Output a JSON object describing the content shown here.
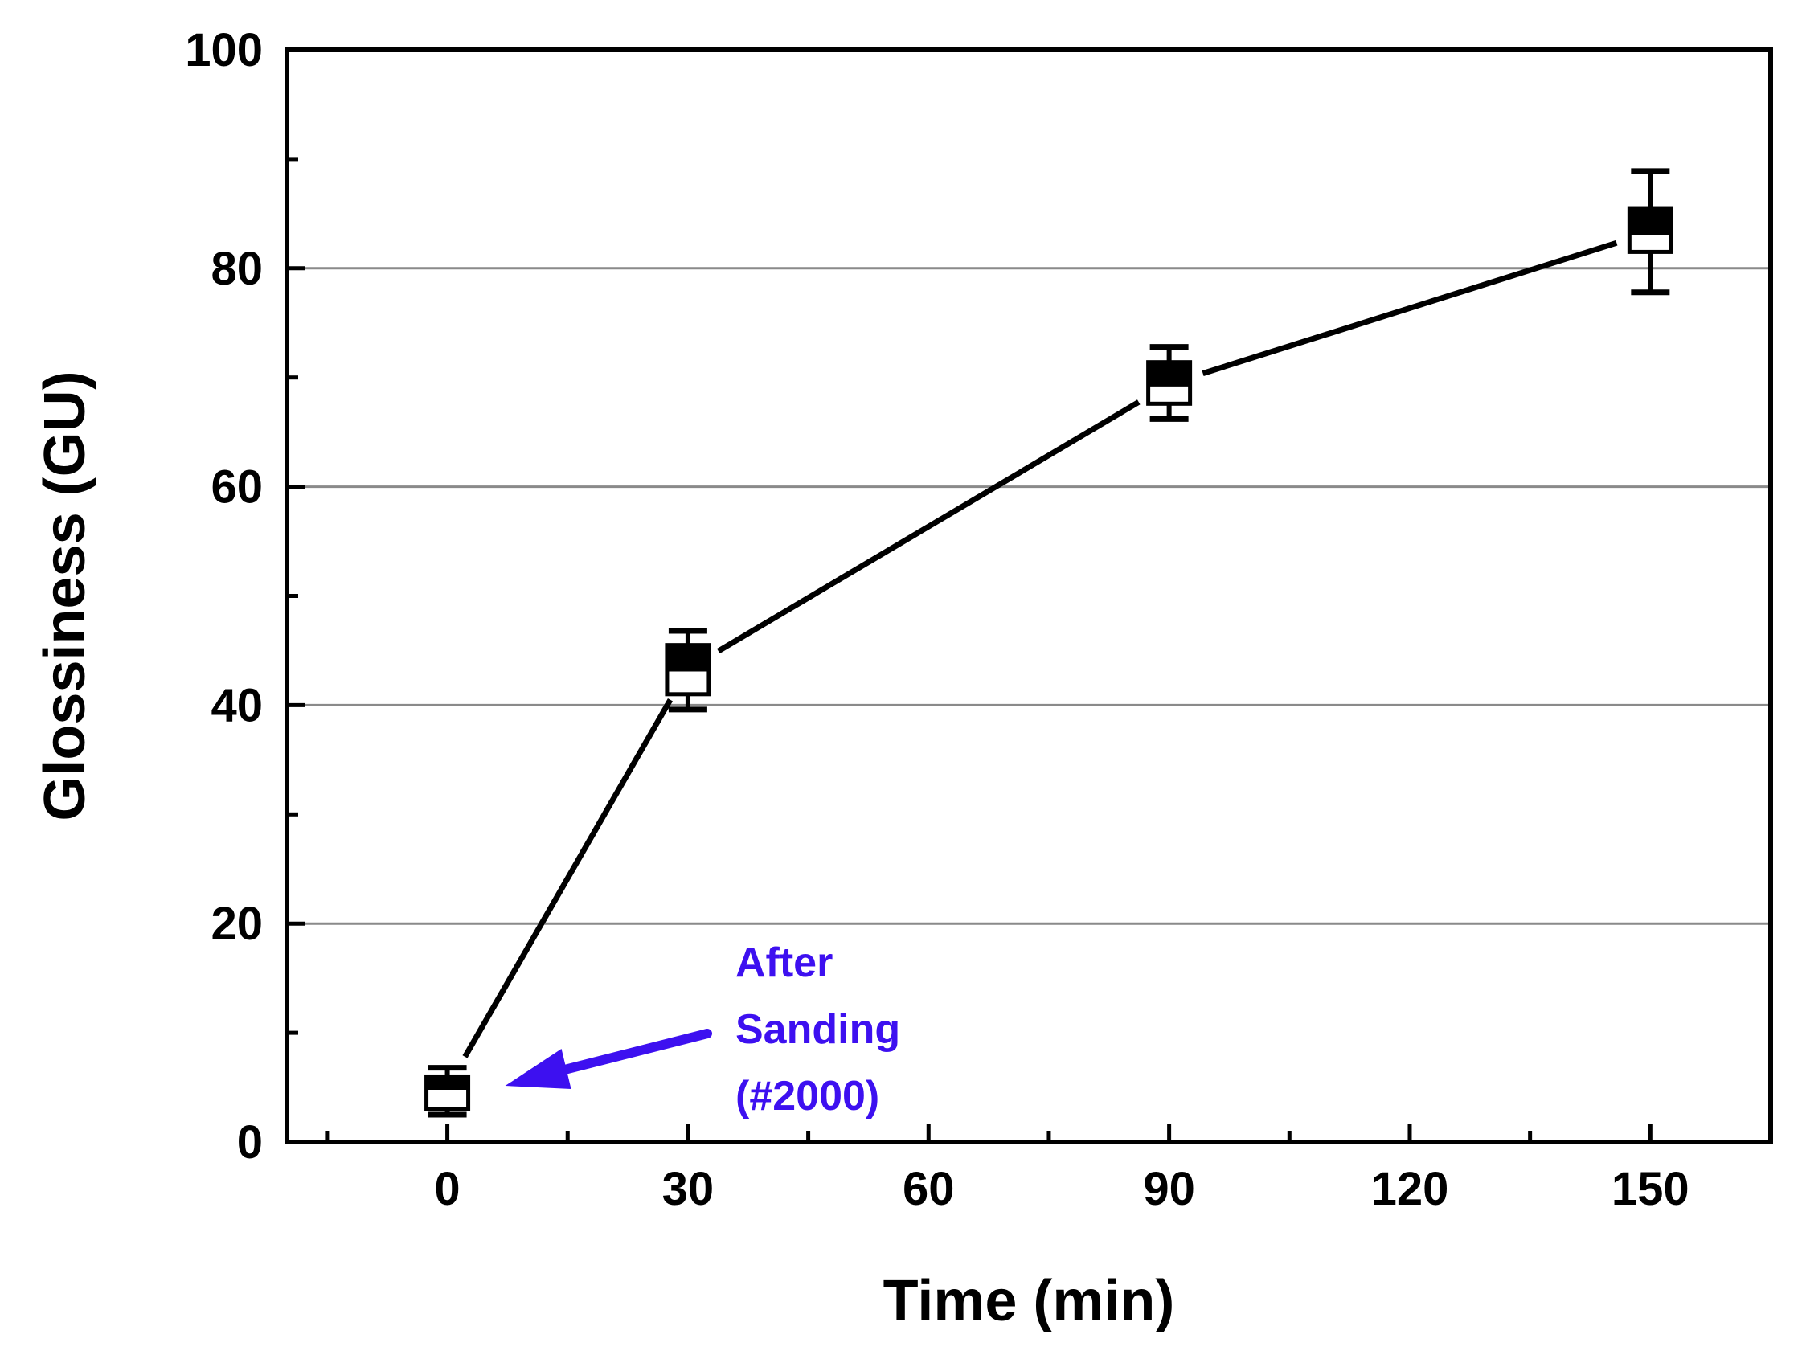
{
  "chart_data": {
    "type": "line",
    "title": "",
    "xlabel": "Time (min)",
    "ylabel": "Glossiness (GU)",
    "xlim": [
      -20,
      165
    ],
    "ylim": [
      0,
      100
    ],
    "x_ticks": [
      0,
      30,
      60,
      90,
      120,
      150
    ],
    "x_tick_labels": [
      "0",
      "30",
      "60",
      "90",
      "120",
      "150"
    ],
    "y_ticks": [
      0,
      20,
      40,
      60,
      80,
      100
    ],
    "y_tick_labels": [
      "0",
      "20",
      "40",
      "60",
      "80",
      "100"
    ],
    "grid": "horizontal",
    "series": [
      {
        "name": "Glossiness",
        "x": [
          0,
          30,
          90,
          150
        ],
        "y": [
          5.0,
          43.3,
          69.4,
          83.3
        ],
        "error_low": [
          2.5,
          39.6,
          66.2,
          77.8
        ],
        "error_high": [
          6.8,
          46.8,
          72.8,
          88.9
        ],
        "box_low": [
          3.0,
          41.0,
          67.6,
          81.5
        ],
        "box_high": [
          6.0,
          45.5,
          71.4,
          85.5
        ],
        "line_color": "#000000"
      }
    ],
    "annotation": {
      "lines": [
        "After",
        "Sanding",
        "(#2000)"
      ],
      "color": "#3D10F0",
      "points_to_x": 0
    }
  }
}
